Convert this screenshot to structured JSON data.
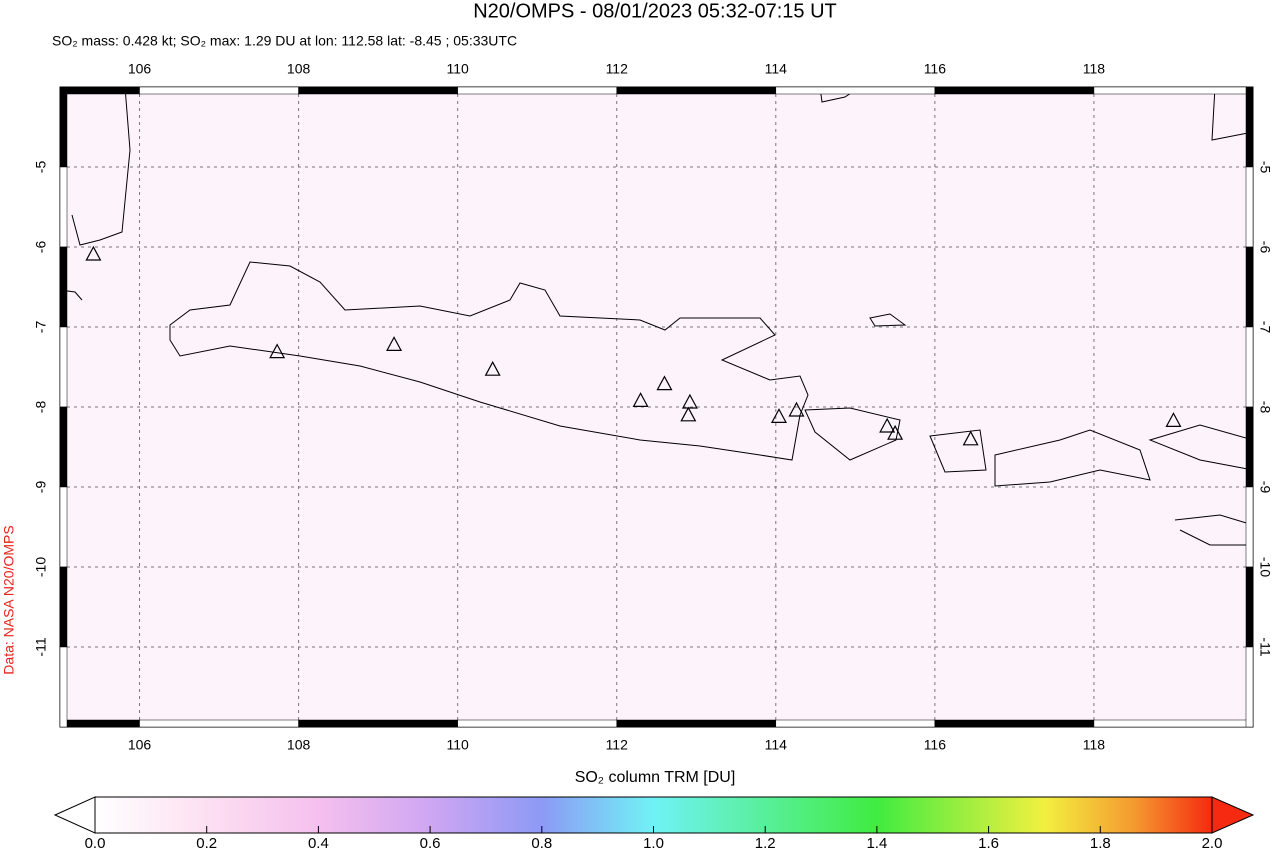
{
  "chart_data": {
    "type": "map",
    "title": "N20/OMPS - 08/01/2023 05:32-07:15 UT",
    "subtitle": "SO₂ mass: 0.428 kt; SO₂ max: 1.29 DU at lon: 112.58 lat: -8.45 ; 05:33UTC",
    "credit": "Data: NASA N20/OMPS",
    "xlim": [
      105,
      120
    ],
    "ylim": [
      -12,
      -4
    ],
    "xticks": [
      106,
      108,
      110,
      112,
      114,
      116,
      118
    ],
    "yticks": [
      -5,
      -6,
      -7,
      -8,
      -9,
      -10,
      -11
    ],
    "grid": true,
    "volcanoes": {
      "lon": [
        105.42,
        107.73,
        109.2,
        110.44,
        112.3,
        112.6,
        112.92,
        112.9,
        114.04,
        114.26,
        115.4,
        115.5,
        116.45,
        119.0
      ],
      "lat": [
        -6.1,
        -7.32,
        -7.23,
        -7.54,
        -7.93,
        -7.72,
        -7.95,
        -8.11,
        -8.13,
        -8.05,
        -8.25,
        -8.34,
        -8.41,
        -8.18
      ]
    },
    "colorbar": {
      "label": "SO₂ column TRM [DU]",
      "lim": [
        0,
        2
      ],
      "ticks": [
        {
          "value": 0,
          "label": "0.0"
        },
        {
          "value": 0.2,
          "label": "0.2"
        },
        {
          "value": 0.4,
          "label": "0.4"
        },
        {
          "value": 0.6,
          "label": "0.6"
        },
        {
          "value": 0.8,
          "label": "0.8"
        },
        {
          "value": 1,
          "label": "1.0"
        },
        {
          "value": 1.2,
          "label": "1.2"
        },
        {
          "value": 1.4,
          "label": "1.4"
        },
        {
          "value": 1.6,
          "label": "1.6"
        },
        {
          "value": 1.8,
          "label": "1.8"
        },
        {
          "value": 2,
          "label": "2.0"
        }
      ]
    }
  }
}
